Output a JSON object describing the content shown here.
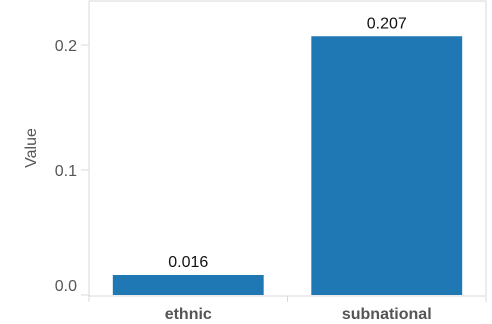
{
  "chart_data": {
    "type": "bar",
    "categories": [
      "ethnic",
      "subnational"
    ],
    "values": [
      0.016,
      0.207
    ],
    "data_labels": [
      "0.016",
      "0.207"
    ],
    "title": "",
    "xlabel": "",
    "ylabel": "Value",
    "ylim": [
      0,
      0.236
    ],
    "yticks": [
      0.0,
      0.1,
      0.2
    ],
    "ytick_labels": [
      "0.0",
      "0.1",
      "0.2"
    ],
    "grid": false,
    "colors": {
      "bar": "#1f77b4",
      "frame": "#d9d9d9"
    }
  }
}
